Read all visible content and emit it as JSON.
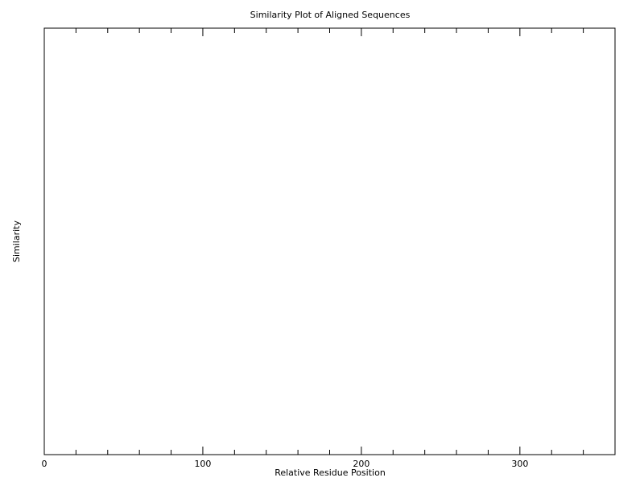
{
  "chart_data": {
    "type": "line",
    "title": "Similarity Plot of Aligned Sequences",
    "xlabel": "Relative Residue Position",
    "ylabel": "Similarity",
    "xlim": [
      0,
      360
    ],
    "ylim": [
      0,
      1
    ],
    "x_major_ticks": [
      0,
      100,
      200,
      300
    ],
    "x_minor_step": 20,
    "grid": false,
    "series": [],
    "colors": {
      "axis": "#000000",
      "background": "#ffffff"
    }
  }
}
